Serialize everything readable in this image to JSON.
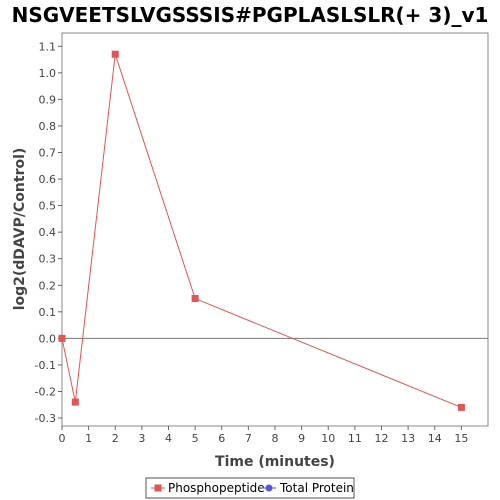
{
  "chart_data": {
    "type": "line",
    "title": "NSGVEETSLVGSSSIS#PGPLASLSLR(+ 3)_v1",
    "xlabel": "Time (minutes)",
    "ylabel": "log2(dDAVP/Control)",
    "xlim": [
      0,
      16
    ],
    "ylim": [
      -0.33,
      1.15
    ],
    "x_ticks": [
      0,
      1,
      2,
      3,
      4,
      5,
      6,
      7,
      8,
      9,
      10,
      11,
      12,
      13,
      14,
      15
    ],
    "y_ticks": [
      -0.3,
      -0.2,
      -0.1,
      0.0,
      0.1,
      0.2,
      0.3,
      0.4,
      0.5,
      0.6,
      0.7,
      0.8,
      0.9,
      1.0,
      1.1
    ],
    "y_tick_labels": [
      "-0.3",
      "-0.2",
      "-0.1",
      "0.0",
      "0.1",
      "0.2",
      "0.3",
      "0.4",
      "0.5",
      "0.6",
      "0.7",
      "0.8",
      "0.9",
      "1.0",
      "1.1"
    ],
    "zero_line": 0,
    "grid": false,
    "legend_position": "bottom",
    "series": [
      {
        "name": "Phosphopeptide",
        "color": "#e05555",
        "marker": "square",
        "x": [
          0,
          0.5,
          2,
          5,
          15
        ],
        "y": [
          0.0,
          -0.24,
          1.07,
          0.15,
          -0.26
        ]
      }
    ],
    "legend": [
      {
        "name": "Phosphopeptide",
        "color": "#e05555",
        "marker": "square"
      },
      {
        "name": "Total Protein",
        "color": "#5555e0",
        "marker": "circle"
      }
    ]
  }
}
